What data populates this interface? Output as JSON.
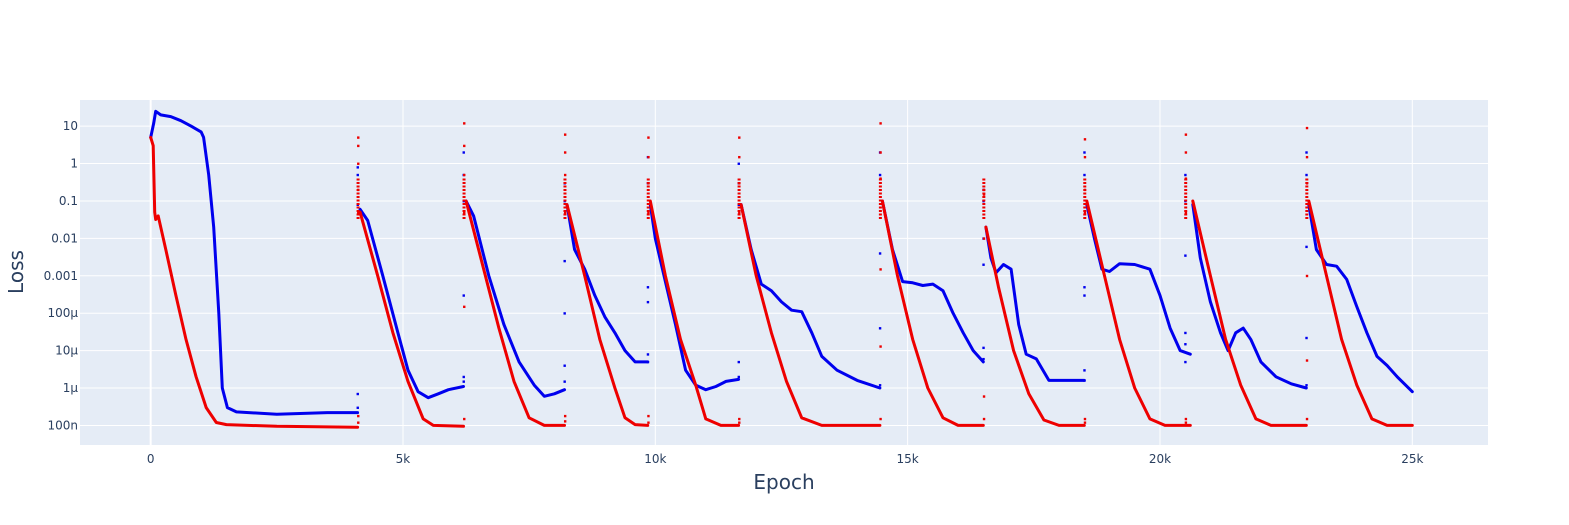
{
  "chart_data": {
    "type": "line",
    "title": "",
    "xlabel": "Epoch",
    "ylabel": "Loss",
    "xlim": [
      -1400,
      26500
    ],
    "ylim": [
      3e-08,
      50
    ],
    "y_scale": "log",
    "grid": true,
    "plot_background": "#e5ecf6",
    "x_ticks": [
      {
        "value": 0,
        "label": "0"
      },
      {
        "value": 5000,
        "label": "5k"
      },
      {
        "value": 10000,
        "label": "10k"
      },
      {
        "value": 15000,
        "label": "15k"
      },
      {
        "value": 20000,
        "label": "20k"
      },
      {
        "value": 25000,
        "label": "25k"
      }
    ],
    "y_ticks": [
      {
        "value": 10,
        "label": "10"
      },
      {
        "value": 1,
        "label": "1"
      },
      {
        "value": 0.1,
        "label": "0.1"
      },
      {
        "value": 0.01,
        "label": "0.01"
      },
      {
        "value": 0.001,
        "label": "0.001"
      },
      {
        "value": 0.0001,
        "label": "100μ"
      },
      {
        "value": 1e-05,
        "label": "10μ"
      },
      {
        "value": 1e-06,
        "label": "1μ"
      },
      {
        "value": 1e-07,
        "label": "100n"
      }
    ],
    "series": [
      {
        "color": "#0000ee",
        "points": [
          [
            0,
            5
          ],
          [
            60,
            12
          ],
          [
            100,
            25
          ],
          [
            200,
            20
          ],
          [
            400,
            18
          ],
          [
            600,
            14
          ],
          [
            800,
            10
          ],
          [
            1000,
            7
          ],
          [
            1050,
            5
          ],
          [
            1150,
            0.5
          ],
          [
            1250,
            0.02
          ],
          [
            1350,
            0.0001
          ],
          [
            1420,
            1e-06
          ],
          [
            1520,
            3e-07
          ],
          [
            1700,
            2.3e-07
          ],
          [
            2500,
            2e-07
          ],
          [
            3500,
            2.2e-07
          ],
          [
            4100,
            2.2e-07
          ],
          [
            4150,
            0.06
          ],
          [
            4300,
            0.03
          ],
          [
            4600,
            0.001
          ],
          [
            4900,
            3e-05
          ],
          [
            5100,
            3e-06
          ],
          [
            5300,
            8e-07
          ],
          [
            5500,
            5.5e-07
          ],
          [
            5700,
            7e-07
          ],
          [
            5900,
            9e-07
          ],
          [
            6200,
            1.1e-06
          ],
          [
            6250,
            0.1
          ],
          [
            6400,
            0.04
          ],
          [
            6700,
            0.001
          ],
          [
            7000,
            5e-05
          ],
          [
            7300,
            5e-06
          ],
          [
            7600,
            1.2e-06
          ],
          [
            7800,
            6e-07
          ],
          [
            8000,
            7e-07
          ],
          [
            8200,
            9e-07
          ],
          [
            8250,
            0.08
          ],
          [
            8400,
            0.005
          ],
          [
            8600,
            0.0015
          ],
          [
            8800,
            0.0003
          ],
          [
            9000,
            8e-05
          ],
          [
            9200,
            3e-05
          ],
          [
            9400,
            1e-05
          ],
          [
            9600,
            5e-06
          ],
          [
            9850,
            5e-06
          ],
          [
            9900,
            0.08
          ],
          [
            10000,
            0.01
          ],
          [
            10200,
            0.0007
          ],
          [
            10400,
            5e-05
          ],
          [
            10600,
            3e-06
          ],
          [
            10800,
            1.2e-06
          ],
          [
            11000,
            9e-07
          ],
          [
            11200,
            1.1e-06
          ],
          [
            11400,
            1.5e-06
          ],
          [
            11650,
            1.7e-06
          ],
          [
            11700,
            0.08
          ],
          [
            11900,
            0.005
          ],
          [
            12100,
            0.0006
          ],
          [
            12300,
            0.0004
          ],
          [
            12500,
            0.0002
          ],
          [
            12700,
            0.00012
          ],
          [
            12900,
            0.00011
          ],
          [
            13100,
            3e-05
          ],
          [
            13300,
            7e-06
          ],
          [
            13600,
            3e-06
          ],
          [
            14000,
            1.6e-06
          ],
          [
            14450,
            1e-06
          ],
          [
            14500,
            0.1
          ],
          [
            14700,
            0.005
          ],
          [
            14900,
            0.0007
          ],
          [
            15100,
            0.00065
          ],
          [
            15300,
            0.00055
          ],
          [
            15500,
            0.0006
          ],
          [
            15700,
            0.0004
          ],
          [
            15900,
            0.0001
          ],
          [
            16100,
            3e-05
          ],
          [
            16300,
            1e-05
          ],
          [
            16500,
            5e-06
          ],
          [
            16550,
            0.02
          ],
          [
            16650,
            0.003
          ],
          [
            16750,
            0.0012
          ],
          [
            16900,
            0.002
          ],
          [
            17050,
            0.0015
          ],
          [
            17200,
            5e-05
          ],
          [
            17350,
            8e-06
          ],
          [
            17550,
            6e-06
          ],
          [
            17800,
            1.6e-06
          ],
          [
            18500,
            1.6e-06
          ],
          [
            18550,
            0.08
          ],
          [
            18700,
            0.01
          ],
          [
            18850,
            0.0015
          ],
          [
            19000,
            0.0013
          ],
          [
            19200,
            0.0021
          ],
          [
            19500,
            0.002
          ],
          [
            19800,
            0.0015
          ],
          [
            20000,
            0.0003
          ],
          [
            20200,
            4e-05
          ],
          [
            20400,
            1e-05
          ],
          [
            20600,
            8e-06
          ],
          [
            20650,
            0.08
          ],
          [
            20800,
            0.003
          ],
          [
            21000,
            0.0002
          ],
          [
            21200,
            3e-05
          ],
          [
            21350,
            1e-05
          ],
          [
            21500,
            3e-05
          ],
          [
            21650,
            4e-05
          ],
          [
            21800,
            2e-05
          ],
          [
            22000,
            5e-06
          ],
          [
            22300,
            2e-06
          ],
          [
            22600,
            1.3e-06
          ],
          [
            22900,
            1e-06
          ],
          [
            22950,
            0.08
          ],
          [
            23100,
            0.005
          ],
          [
            23300,
            0.002
          ],
          [
            23500,
            0.0018
          ],
          [
            23700,
            0.0008
          ],
          [
            23900,
            0.00015
          ],
          [
            24100,
            3e-05
          ],
          [
            24300,
            7e-06
          ],
          [
            24500,
            4e-06
          ],
          [
            24700,
            2e-06
          ],
          [
            25000,
            8e-07
          ]
        ]
      },
      {
        "color": "#ee0000",
        "points": [
          [
            0,
            5
          ],
          [
            50,
            3
          ],
          [
            80,
            0.05
          ],
          [
            100,
            0.032
          ],
          [
            150,
            0.04
          ],
          [
            300,
            0.005
          ],
          [
            500,
            0.0003
          ],
          [
            700,
            2e-05
          ],
          [
            900,
            2e-06
          ],
          [
            1100,
            3e-07
          ],
          [
            1300,
            1.2e-07
          ],
          [
            1500,
            1.05e-07
          ],
          [
            2500,
            9.5e-08
          ],
          [
            4100,
            9e-08
          ],
          [
            4150,
            0.05
          ],
          [
            4500,
            0.001
          ],
          [
            4800,
            3e-05
          ],
          [
            5100,
            1.5e-06
          ],
          [
            5400,
            1.5e-07
          ],
          [
            5600,
            1e-07
          ],
          [
            6200,
            9.5e-08
          ],
          [
            6250,
            0.1
          ],
          [
            6600,
            0.0015
          ],
          [
            6900,
            4e-05
          ],
          [
            7200,
            1.5e-06
          ],
          [
            7500,
            1.6e-07
          ],
          [
            7800,
            1e-07
          ],
          [
            8200,
            1e-07
          ],
          [
            8250,
            0.08
          ],
          [
            8600,
            0.001
          ],
          [
            8900,
            2e-05
          ],
          [
            9200,
            1e-06
          ],
          [
            9400,
            1.6e-07
          ],
          [
            9600,
            1.05e-07
          ],
          [
            9850,
            1e-07
          ],
          [
            9900,
            0.1
          ],
          [
            10200,
            0.001
          ],
          [
            10500,
            2e-05
          ],
          [
            10800,
            1.2e-06
          ],
          [
            11000,
            1.5e-07
          ],
          [
            11300,
            1e-07
          ],
          [
            11650,
            1e-07
          ],
          [
            11700,
            0.08
          ],
          [
            12000,
            0.001
          ],
          [
            12300,
            3e-05
          ],
          [
            12600,
            1.5e-06
          ],
          [
            12900,
            1.6e-07
          ],
          [
            13300,
            1e-07
          ],
          [
            14450,
            1e-07
          ],
          [
            14500,
            0.1
          ],
          [
            14800,
            0.001
          ],
          [
            15100,
            2e-05
          ],
          [
            15400,
            1e-06
          ],
          [
            15700,
            1.6e-07
          ],
          [
            16000,
            1e-07
          ],
          [
            16500,
            1e-07
          ],
          [
            16550,
            0.02
          ],
          [
            16800,
            0.0005
          ],
          [
            17100,
            1e-05
          ],
          [
            17400,
            7e-07
          ],
          [
            17700,
            1.4e-07
          ],
          [
            18000,
            1e-07
          ],
          [
            18500,
            1e-07
          ],
          [
            18550,
            0.1
          ],
          [
            18900,
            0.001
          ],
          [
            19200,
            2e-05
          ],
          [
            19500,
            1e-06
          ],
          [
            19800,
            1.5e-07
          ],
          [
            20100,
            1e-07
          ],
          [
            20600,
            1e-07
          ],
          [
            20650,
            0.1
          ],
          [
            21000,
            0.001
          ],
          [
            21300,
            2e-05
          ],
          [
            21600,
            1.2e-06
          ],
          [
            21900,
            1.5e-07
          ],
          [
            22200,
            1e-07
          ],
          [
            22900,
            1e-07
          ],
          [
            22950,
            0.1
          ],
          [
            23300,
            0.001
          ],
          [
            23600,
            2e-05
          ],
          [
            23900,
            1.2e-06
          ],
          [
            24200,
            1.5e-07
          ],
          [
            24500,
            1e-07
          ],
          [
            25000,
            1e-07
          ]
        ]
      }
    ],
    "spike_markers": [
      {
        "x": 4100,
        "blue": [
          0.5,
          0.8,
          0.08,
          7e-07,
          3e-07
        ],
        "red": [
          5,
          3,
          1,
          0.2,
          0.05,
          1.8e-07,
          1.2e-07
        ]
      },
      {
        "x": 6200,
        "blue": [
          2,
          0.5,
          0.1,
          0.0003,
          2e-06,
          1.5e-06
        ],
        "red": [
          12,
          3,
          0.5,
          0.05,
          0.00015,
          1.5e-07
        ]
      },
      {
        "x": 8200,
        "blue": [
          0.3,
          0.1,
          0.0025,
          0.0001,
          4e-06,
          1.5e-06
        ],
        "red": [
          6,
          2,
          0.5,
          0.05,
          1.8e-07,
          1.3e-07
        ]
      },
      {
        "x": 9850,
        "blue": [
          1.5,
          0.3,
          0.0005,
          0.0002,
          8e-06,
          5e-06
        ],
        "red": [
          5,
          1.5,
          0.3,
          0.05,
          1.8e-07,
          1.2e-07
        ]
      },
      {
        "x": 11650,
        "blue": [
          1,
          0.3,
          0.08,
          5e-06,
          2e-06
        ],
        "red": [
          5,
          1.5,
          0.3,
          0.05,
          1.5e-07,
          1.2e-07
        ]
      },
      {
        "x": 14450,
        "blue": [
          2,
          0.5,
          0.004,
          4e-05,
          1.2e-06
        ],
        "red": [
          12,
          2,
          0.4,
          0.0015,
          1.3e-05,
          1.5e-07
        ]
      },
      {
        "x": 16500,
        "blue": [
          0.2,
          0.1,
          0.01,
          0.002,
          1.2e-05,
          6e-06
        ],
        "red": [
          0.2,
          0.15,
          0.01,
          6e-07,
          1.5e-07
        ]
      },
      {
        "x": 18500,
        "blue": [
          2,
          0.5,
          0.0005,
          0.0003,
          3e-06,
          1.6e-06
        ],
        "red": [
          4.5,
          1.5,
          0.2,
          0.05,
          1.5e-07,
          1.2e-07
        ]
      },
      {
        "x": 20500,
        "blue": [
          0.5,
          0.1,
          0.0035,
          3e-05,
          1.5e-05,
          5e-06
        ],
        "red": [
          6,
          2,
          0.4,
          0.05,
          1.5e-07,
          1.2e-07
        ]
      },
      {
        "x": 22900,
        "blue": [
          2,
          0.5,
          0.006,
          2.2e-05,
          1.2e-06
        ],
        "red": [
          9,
          1.5,
          0.3,
          0.001,
          5.5e-06,
          1.5e-07
        ]
      }
    ]
  }
}
